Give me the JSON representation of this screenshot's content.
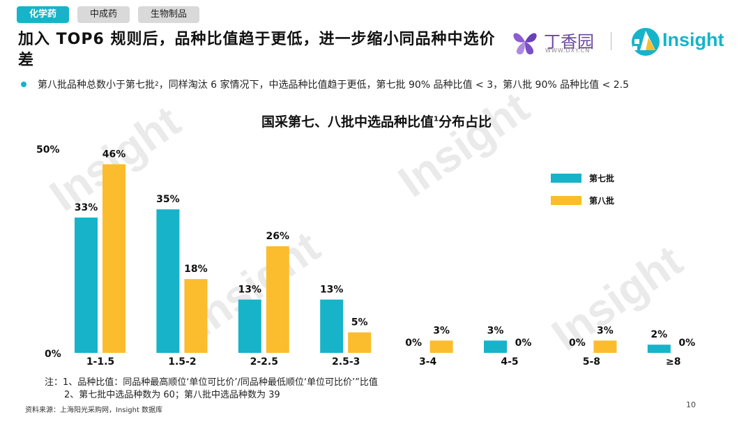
{
  "tabs": [
    {
      "label": "化学药",
      "active": true
    },
    {
      "label": "中成药",
      "active": false
    },
    {
      "label": "生物制品",
      "active": false
    }
  ],
  "title": "加入 TOP6 规则后，品种比值趋于更低，进一步缩小同品种中选价差",
  "logos": {
    "dxy_name": "丁香园",
    "dxy_url": "WWW.DXY.CN",
    "insight": "Insight"
  },
  "bullet": {
    "pre": "第八批品种总数小于第七批",
    "sup": "2",
    "post": "，同样淘汰 6 家情况下，中选品种比值趋于更低，第七批 90% 品种比值 < 3，第八批 90% 品种比值 < 2.5"
  },
  "chart_title": {
    "pre": "国采第七、八批中选品种比值",
    "sup": "1",
    "post": "分布占比"
  },
  "chart_data": {
    "type": "bar",
    "title": "国采第七、八批中选品种比值¹分布占比",
    "categories": [
      "1-1.5",
      "1.5-2",
      "2-2.5",
      "2.5-3",
      "3-4",
      "4-5",
      "5-8",
      "≥8"
    ],
    "series": [
      {
        "name": "第七批",
        "values": [
          33,
          35,
          13,
          13,
          0,
          3,
          0,
          2
        ],
        "color": "#17b3c9"
      },
      {
        "name": "第八批",
        "values": [
          46,
          18,
          26,
          5,
          3,
          0,
          3,
          0
        ],
        "color": "#fbbd2e"
      }
    ],
    "value_suffix": "%",
    "ylim": [
      0,
      50
    ],
    "y_ticks": [
      "0%",
      "50%"
    ],
    "grid": false,
    "legend_position": "right"
  },
  "notes": {
    "line1": "注：1、品种比值：同品种最高顺位‘单位可比价’/同品种最低顺位‘单位可比价’”比值",
    "line2": "2、第七批中选品种数为 60；第八批中选品种数为 39"
  },
  "source": "资料来源：上海阳光采购网，Insight 数据库",
  "page_number": "10",
  "watermark_text": "Insight"
}
